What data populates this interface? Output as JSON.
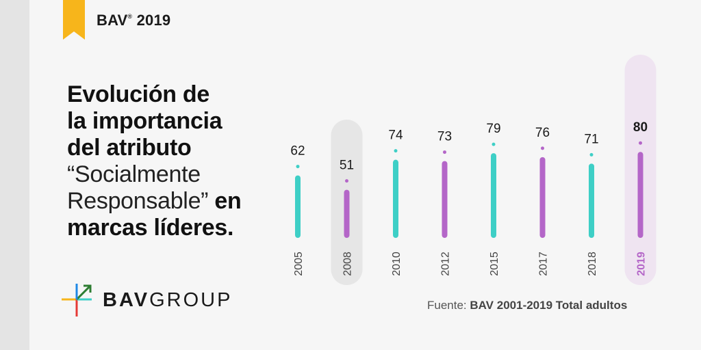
{
  "header": {
    "title": "BAV",
    "reg": "®",
    "year": "2019"
  },
  "headline": {
    "line1": "Evolución de",
    "line2": "la importancia",
    "line3": "del atributo",
    "line4": "“Socialmente",
    "line5_light": "Responsable”",
    "line5_bold": "en",
    "line6": "marcas líderes."
  },
  "logo": {
    "bold": "BAV",
    "light": "GROUP"
  },
  "source": {
    "prefix": "Fuente:",
    "text": "BAV 2001-2019 Total adultos"
  },
  "colors": {
    "teal": "#3ecfc6",
    "purple": "#b466c8",
    "highlight_grey": "#e6e6e6",
    "highlight_purple": "#efe4f1",
    "accent_yellow": "#f7b51b"
  },
  "chart_data": {
    "type": "bar",
    "categories": [
      "2005",
      "2008",
      "2010",
      "2012",
      "2015",
      "2017",
      "2018",
      "2019"
    ],
    "values": [
      62,
      51,
      74,
      73,
      79,
      76,
      71,
      80
    ],
    "bar_colors": [
      "teal",
      "purple",
      "teal",
      "purple",
      "teal",
      "purple",
      "teal",
      "purple"
    ],
    "highlighted": [
      "2008",
      "2019"
    ],
    "emphasized": "2019",
    "title": "",
    "xlabel": "",
    "ylabel": "",
    "grid": false
  }
}
